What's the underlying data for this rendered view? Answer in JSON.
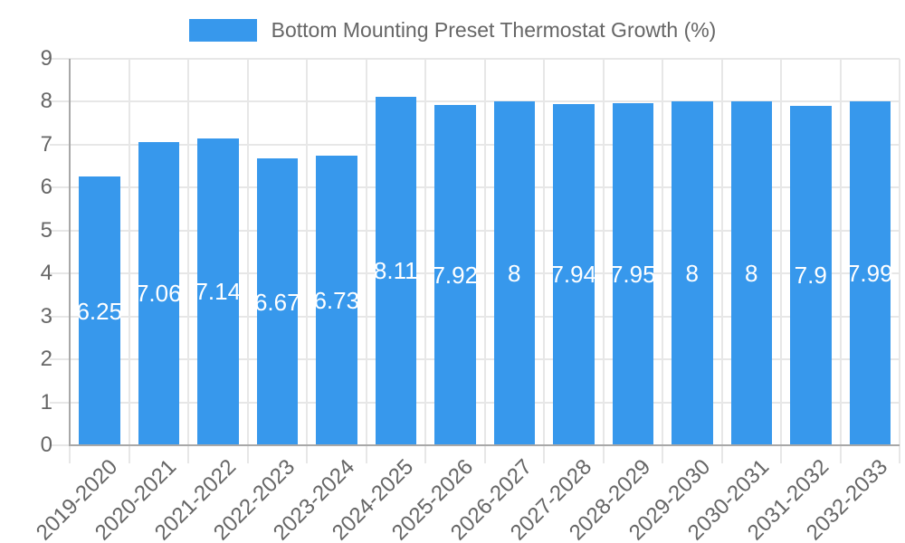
{
  "legend": {
    "label": "Bottom Mounting Preset Thermostat Growth (%)"
  },
  "colors": {
    "bar": "#3798EC",
    "grid": "#E7E7E7",
    "axis": "#A8A8A8",
    "tick_text": "#666666",
    "value_text": "#FFFFFF",
    "background": "#FFFFFF"
  },
  "chart_data": {
    "type": "bar",
    "title": "Bottom Mounting Preset Thermostat Growth (%)",
    "categories": [
      "2019-2020",
      "2020-2021",
      "2021-2022",
      "2022-2023",
      "2023-2024",
      "2024-2025",
      "2025-2026",
      "2026-2027",
      "2027-2028",
      "2028-2029",
      "2029-2030",
      "2030-2031",
      "2031-2032",
      "2032-2033"
    ],
    "values": [
      6.25,
      7.06,
      7.14,
      6.67,
      6.73,
      8.11,
      7.92,
      8,
      7.94,
      7.95,
      8,
      8,
      7.9,
      7.99
    ],
    "series": [
      {
        "name": "Bottom Mounting Preset Thermostat Growth (%)",
        "values": [
          6.25,
          7.06,
          7.14,
          6.67,
          6.73,
          8.11,
          7.92,
          8,
          7.94,
          7.95,
          8,
          8,
          7.9,
          7.99
        ]
      }
    ],
    "xlabel": "",
    "ylabel": "",
    "ylim": [
      0,
      9
    ],
    "yticks": [
      0,
      1,
      2,
      3,
      4,
      5,
      6,
      7,
      8,
      9
    ],
    "grid": true,
    "legend_position": "top",
    "value_labels_position": "center-of-bar",
    "value_labels_color": "#FFFFFF",
    "bar_color": "#3798EC"
  }
}
